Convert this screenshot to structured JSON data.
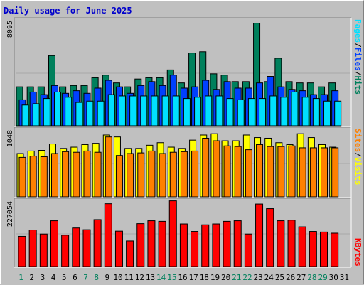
{
  "title": "Daily usage for June 2025",
  "colors": {
    "hits": "#00805c",
    "files": "#0040ff",
    "pages": "#00e0ff",
    "visits": "#ffff00",
    "sites": "#ff8000",
    "kbytes": "#ff0000",
    "axis_day_normal": "#000000",
    "axis_day_weekend": "#00805c"
  },
  "chart_data": [
    {
      "type": "bar",
      "title": "Hits / Files / Pages",
      "categories": [
        "1",
        "2",
        "3",
        "4",
        "5",
        "6",
        "7",
        "8",
        "9",
        "10",
        "11",
        "12",
        "13",
        "14",
        "15",
        "16",
        "17",
        "18",
        "19",
        "20",
        "21",
        "22",
        "23",
        "24",
        "25",
        "26",
        "27",
        "28",
        "29",
        "30",
        "31"
      ],
      "weekend_days": [
        "1",
        "7",
        "8",
        "14",
        "15",
        "21",
        "22",
        "28",
        "29"
      ],
      "ymax_label": "8095",
      "ylim": [
        0,
        8095
      ],
      "series": [
        {
          "name": "Hits",
          "values": [
            3000,
            3000,
            3000,
            5400,
            3000,
            3100,
            3100,
            3700,
            3900,
            3300,
            3000,
            3600,
            3700,
            3700,
            4300,
            3300,
            5600,
            5700,
            4000,
            3900,
            3400,
            3400,
            7900,
            3400,
            5200,
            3400,
            3300,
            3300,
            3000,
            3300,
            0
          ]
        },
        {
          "name": "Files",
          "values": [
            2000,
            2600,
            2400,
            3100,
            2500,
            2700,
            2500,
            2900,
            3500,
            3000,
            2500,
            3100,
            3400,
            3100,
            3900,
            2900,
            3000,
            3500,
            2800,
            3400,
            2900,
            2900,
            3300,
            3800,
            3000,
            2800,
            2700,
            2400,
            2400,
            2700,
            0
          ]
        },
        {
          "name": "Pages",
          "values": [
            1600,
            1700,
            2100,
            2600,
            2200,
            1800,
            1900,
            1900,
            2400,
            2300,
            2300,
            2300,
            2300,
            2300,
            2300,
            2100,
            2200,
            2300,
            2300,
            2100,
            2000,
            2100,
            2100,
            2300,
            2200,
            2600,
            2200,
            2100,
            1900,
            1900,
            0
          ]
        }
      ]
    },
    {
      "type": "bar",
      "title": "Visits / Sites",
      "categories": [
        "1",
        "2",
        "3",
        "4",
        "5",
        "6",
        "7",
        "8",
        "9",
        "10",
        "11",
        "12",
        "13",
        "14",
        "15",
        "16",
        "17",
        "18",
        "19",
        "20",
        "21",
        "22",
        "23",
        "24",
        "25",
        "26",
        "27",
        "28",
        "29",
        "30",
        "31"
      ],
      "ymax_label": "1048",
      "ylim": [
        0,
        1048
      ],
      "series": [
        {
          "name": "Visits",
          "values": [
            680,
            720,
            730,
            830,
            760,
            780,
            820,
            840,
            970,
            940,
            760,
            760,
            810,
            850,
            780,
            760,
            890,
            970,
            990,
            880,
            880,
            970,
            930,
            920,
            850,
            820,
            990,
            930,
            820,
            780,
            0
          ]
        },
        {
          "name": "Sites",
          "values": [
            620,
            640,
            630,
            680,
            710,
            700,
            720,
            700,
            940,
            650,
            680,
            690,
            720,
            680,
            700,
            710,
            720,
            920,
            880,
            800,
            790,
            740,
            820,
            790,
            790,
            800,
            770,
            770,
            770,
            770,
            0
          ]
        }
      ]
    },
    {
      "type": "bar",
      "title": "KBytes",
      "categories": [
        "1",
        "2",
        "3",
        "4",
        "5",
        "6",
        "7",
        "8",
        "9",
        "10",
        "11",
        "12",
        "13",
        "14",
        "15",
        "16",
        "17",
        "18",
        "19",
        "20",
        "21",
        "22",
        "23",
        "24",
        "25",
        "26",
        "27",
        "28",
        "29",
        "30",
        "31"
      ],
      "ymax_label": "227054",
      "ylim": [
        0,
        227054
      ],
      "series": [
        {
          "name": "KBytes",
          "values": [
            105000,
            127000,
            113000,
            159000,
            109000,
            134000,
            128000,
            163000,
            218000,
            123000,
            89000,
            149000,
            159000,
            157000,
            228000,
            148000,
            122000,
            145000,
            148000,
            157000,
            159000,
            113000,
            217000,
            201000,
            159000,
            161000,
            138000,
            122000,
            120000,
            116000,
            0
          ]
        }
      ]
    }
  ],
  "side_labels": {
    "top": [
      "Pages",
      "/",
      "Files",
      "/",
      "Hits"
    ],
    "middle": [
      "Sites",
      "/",
      "Visits"
    ],
    "bottom": [
      "KBytes"
    ]
  }
}
